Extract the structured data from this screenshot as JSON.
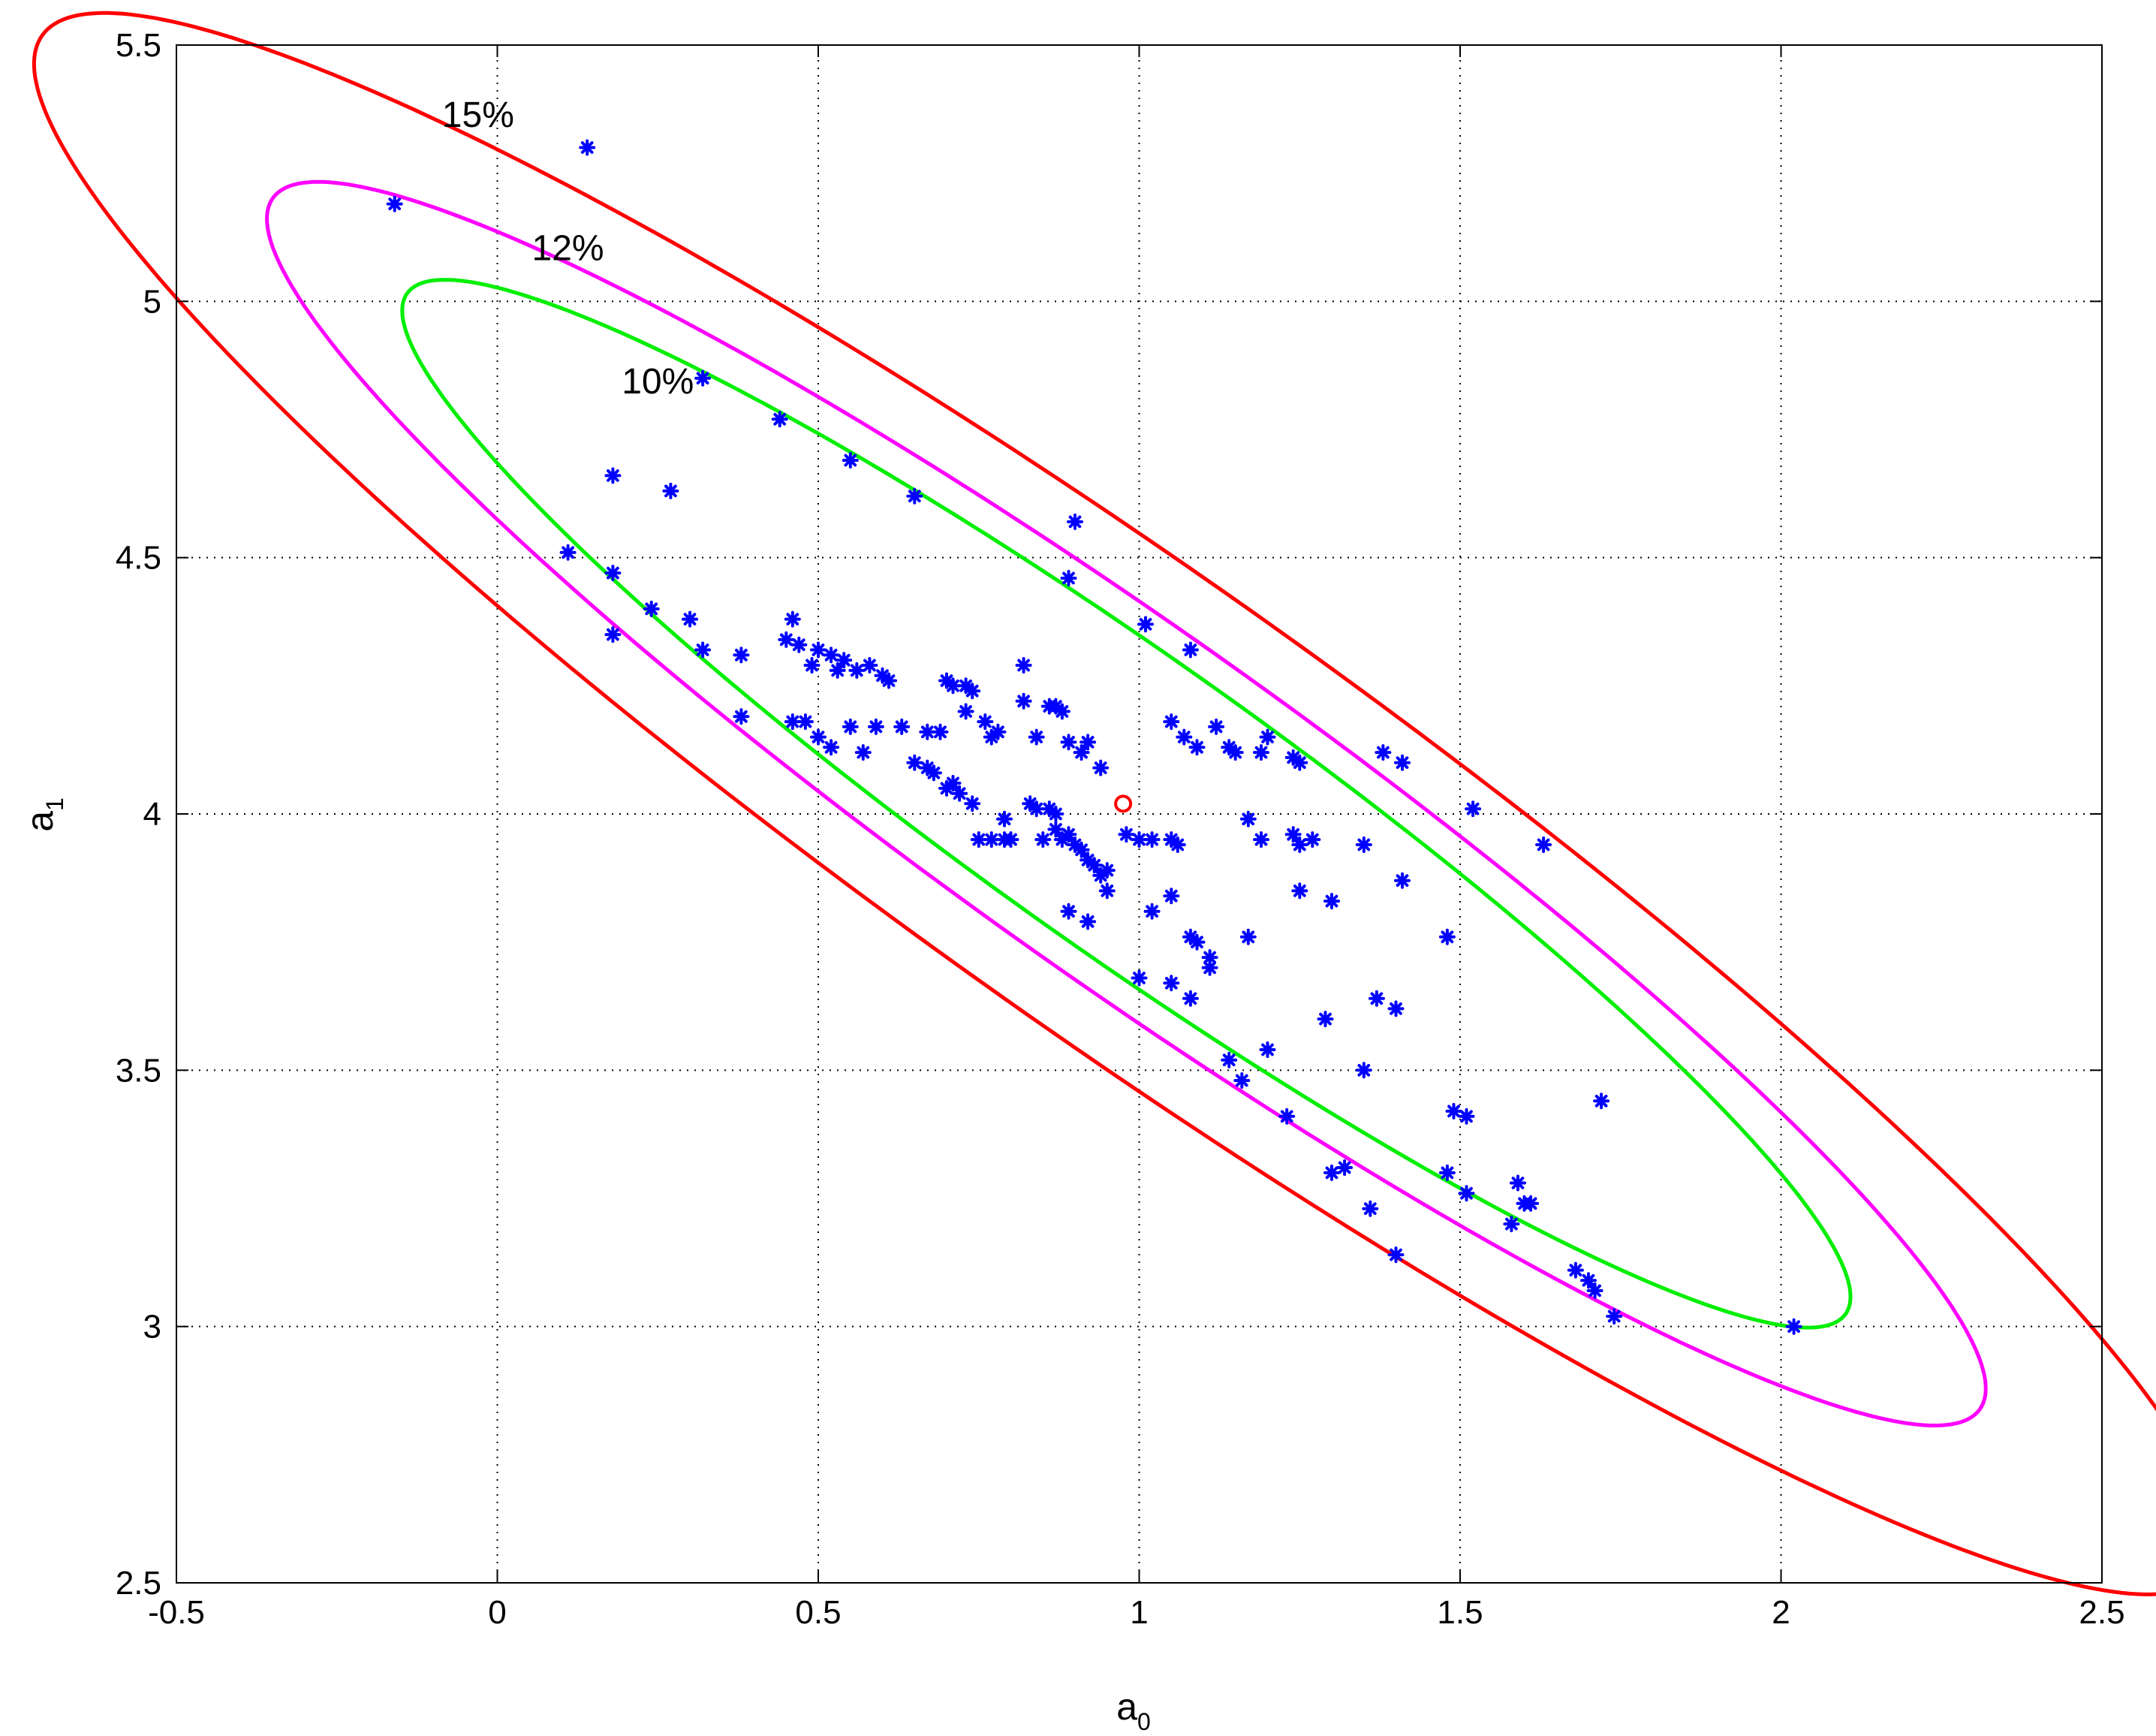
{
  "chart_data": {
    "type": "scatter",
    "xlabel": "a",
    "xlabel_sub": "0",
    "ylabel": "a",
    "ylabel_sub": "1",
    "xlim": [
      -0.5,
      2.5
    ],
    "ylim": [
      2.5,
      5.5
    ],
    "x_ticks": [
      -0.5,
      0,
      0.5,
      1,
      1.5,
      2,
      2.5
    ],
    "x_tick_labels": [
      "-0.5",
      "0",
      "0.5",
      "1",
      "1.5",
      "2",
      "2.5"
    ],
    "y_ticks": [
      2.5,
      3,
      3.5,
      4,
      4.5,
      5,
      5.5
    ],
    "y_tick_labels": [
      "2.5",
      "3",
      "3.5",
      "4",
      "4.5",
      "5",
      "5.5"
    ],
    "grid": true,
    "ellipses": [
      {
        "label": "15%",
        "color": "#ff0000",
        "center": [
          0.98,
          4.02
        ],
        "semi_major": 2.26,
        "semi_minor": 0.41,
        "angle_deg": -42,
        "label_pos": [
          -0.03,
          5.34
        ]
      },
      {
        "label": "12%",
        "color": "#ff00ff",
        "center": [
          0.98,
          4.02
        ],
        "semi_major": 1.78,
        "semi_minor": 0.31,
        "angle_deg": -42,
        "label_pos": [
          0.11,
          5.08
        ]
      },
      {
        "label": "10%",
        "color": "#00ee00",
        "center": [
          0.98,
          4.02
        ],
        "semi_major": 1.5,
        "semi_minor": 0.26,
        "angle_deg": -42,
        "label_pos": [
          0.25,
          4.82
        ]
      }
    ],
    "center_point": {
      "x": 0.975,
      "y": 4.02,
      "color": "#ff0000"
    },
    "series": [
      {
        "color": "#0000ff",
        "points": [
          [
            -0.16,
            5.19
          ],
          [
            0.14,
            5.3
          ],
          [
            0.32,
            4.85
          ],
          [
            0.44,
            4.77
          ],
          [
            0.55,
            4.69
          ],
          [
            0.65,
            4.62
          ],
          [
            0.18,
            4.66
          ],
          [
            0.27,
            4.63
          ],
          [
            0.11,
            4.51
          ],
          [
            0.18,
            4.47
          ],
          [
            0.24,
            4.4
          ],
          [
            0.18,
            4.35
          ],
          [
            0.3,
            4.38
          ],
          [
            0.32,
            4.32
          ],
          [
            0.38,
            4.31
          ],
          [
            0.38,
            4.19
          ],
          [
            0.45,
            4.34
          ],
          [
            0.46,
            4.38
          ],
          [
            0.47,
            4.33
          ],
          [
            0.5,
            4.32
          ],
          [
            0.52,
            4.31
          ],
          [
            0.54,
            4.3
          ],
          [
            0.56,
            4.28
          ],
          [
            0.58,
            4.29
          ],
          [
            0.6,
            4.27
          ],
          [
            0.61,
            4.26
          ],
          [
            0.49,
            4.29
          ],
          [
            0.53,
            4.28
          ],
          [
            0.46,
            4.18
          ],
          [
            0.48,
            4.18
          ],
          [
            0.5,
            4.15
          ],
          [
            0.52,
            4.13
          ],
          [
            0.55,
            4.17
          ],
          [
            0.57,
            4.12
          ],
          [
            0.59,
            4.17
          ],
          [
            0.63,
            4.17
          ],
          [
            0.65,
            4.1
          ],
          [
            0.67,
            4.09
          ],
          [
            0.68,
            4.08
          ],
          [
            0.7,
            4.05
          ],
          [
            0.71,
            4.06
          ],
          [
            0.72,
            4.04
          ],
          [
            0.74,
            4.02
          ],
          [
            0.67,
            4.16
          ],
          [
            0.69,
            4.16
          ],
          [
            0.7,
            4.26
          ],
          [
            0.71,
            4.25
          ],
          [
            0.73,
            4.25
          ],
          [
            0.74,
            4.24
          ],
          [
            0.73,
            4.2
          ],
          [
            0.76,
            4.18
          ],
          [
            0.77,
            4.15
          ],
          [
            0.78,
            4.16
          ],
          [
            0.82,
            4.29
          ],
          [
            0.82,
            4.22
          ],
          [
            0.84,
            4.15
          ],
          [
            0.86,
            4.21
          ],
          [
            0.87,
            4.21
          ],
          [
            0.88,
            4.2
          ],
          [
            0.89,
            4.14
          ],
          [
            0.91,
            4.12
          ],
          [
            0.92,
            4.14
          ],
          [
            0.94,
            4.09
          ],
          [
            0.75,
            3.95
          ],
          [
            0.77,
            3.95
          ],
          [
            0.79,
            3.99
          ],
          [
            0.79,
            3.95
          ],
          [
            0.8,
            3.95
          ],
          [
            0.83,
            4.02
          ],
          [
            0.84,
            4.01
          ],
          [
            0.86,
            4.01
          ],
          [
            0.87,
            4.0
          ],
          [
            0.85,
            3.95
          ],
          [
            0.87,
            3.97
          ],
          [
            0.88,
            3.95
          ],
          [
            0.89,
            3.96
          ],
          [
            0.9,
            3.94
          ],
          [
            0.91,
            3.93
          ],
          [
            0.92,
            3.91
          ],
          [
            0.93,
            3.9
          ],
          [
            0.94,
            3.88
          ],
          [
            0.95,
            3.89
          ],
          [
            0.95,
            3.85
          ],
          [
            0.89,
            3.81
          ],
          [
            0.92,
            3.79
          ],
          [
            0.9,
            4.57
          ],
          [
            0.89,
            4.46
          ],
          [
            1.01,
            4.37
          ],
          [
            1.08,
            4.32
          ],
          [
            0.98,
            3.96
          ],
          [
            1.0,
            3.95
          ],
          [
            1.02,
            3.95
          ],
          [
            1.05,
            3.95
          ],
          [
            1.06,
            3.94
          ],
          [
            1.02,
            3.81
          ],
          [
            1.05,
            3.84
          ],
          [
            1.0,
            3.68
          ],
          [
            1.05,
            3.67
          ],
          [
            1.08,
            3.64
          ],
          [
            1.08,
            3.76
          ],
          [
            1.09,
            3.75
          ],
          [
            1.11,
            3.72
          ],
          [
            1.11,
            3.7
          ],
          [
            1.05,
            4.18
          ],
          [
            1.07,
            4.15
          ],
          [
            1.09,
            4.13
          ],
          [
            1.12,
            4.17
          ],
          [
            1.14,
            4.13
          ],
          [
            1.15,
            4.12
          ],
          [
            1.19,
            4.12
          ],
          [
            1.2,
            4.15
          ],
          [
            1.24,
            4.11
          ],
          [
            1.25,
            4.1
          ],
          [
            1.17,
            3.99
          ],
          [
            1.19,
            3.95
          ],
          [
            1.24,
            3.96
          ],
          [
            1.25,
            3.94
          ],
          [
            1.27,
            3.95
          ],
          [
            1.25,
            3.85
          ],
          [
            1.17,
            3.76
          ],
          [
            1.3,
            3.83
          ],
          [
            1.14,
            3.52
          ],
          [
            1.16,
            3.48
          ],
          [
            1.2,
            3.54
          ],
          [
            1.23,
            3.41
          ],
          [
            1.29,
            3.6
          ],
          [
            1.3,
            3.3
          ],
          [
            1.32,
            3.31
          ],
          [
            1.35,
            3.5
          ],
          [
            1.36,
            3.23
          ],
          [
            1.35,
            3.94
          ],
          [
            1.37,
            3.64
          ],
          [
            1.38,
            4.12
          ],
          [
            1.41,
            4.1
          ],
          [
            1.41,
            3.87
          ],
          [
            1.4,
            3.62
          ],
          [
            1.4,
            3.14
          ],
          [
            1.48,
            3.76
          ],
          [
            1.49,
            3.42
          ],
          [
            1.51,
            3.41
          ],
          [
            1.48,
            3.3
          ],
          [
            1.51,
            3.26
          ],
          [
            1.52,
            4.01
          ],
          [
            1.58,
            3.2
          ],
          [
            1.59,
            3.28
          ],
          [
            1.6,
            3.24
          ],
          [
            1.61,
            3.24
          ],
          [
            1.63,
            3.94
          ],
          [
            1.68,
            3.11
          ],
          [
            1.7,
            3.09
          ],
          [
            1.71,
            3.07
          ],
          [
            1.72,
            3.44
          ],
          [
            1.74,
            3.02
          ],
          [
            2.02,
            3.0
          ]
        ]
      }
    ]
  }
}
